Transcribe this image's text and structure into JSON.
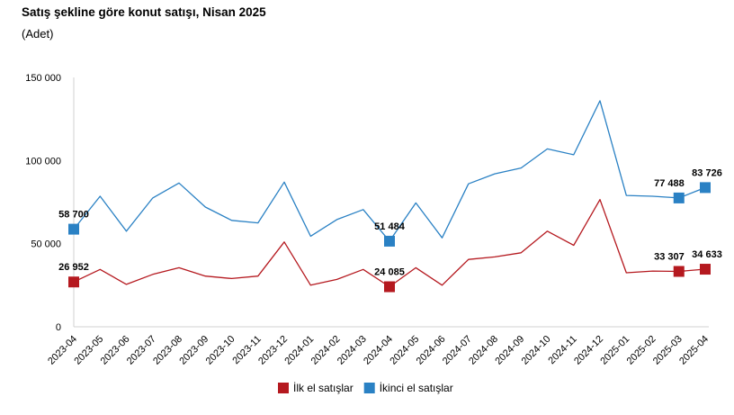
{
  "chart_data": {
    "type": "line",
    "title": "Satış şekline göre konut satışı, Nisan 2025",
    "subtitle": "(Adet)",
    "ylim": [
      0,
      150000
    ],
    "yticks": [
      {
        "value": 0,
        "label": "0"
      },
      {
        "value": 50000,
        "label": "50 000"
      },
      {
        "value": 100000,
        "label": "100 000"
      },
      {
        "value": 150000,
        "label": "150 000"
      }
    ],
    "categories": [
      "2023-04",
      "2023-05",
      "2023-06",
      "2023-07",
      "2023-08",
      "2023-09",
      "2023-10",
      "2023-11",
      "2023-12",
      "2024-01",
      "2024-02",
      "2024-03",
      "2024-04",
      "2024-05",
      "2024-06",
      "2024-07",
      "2024-08",
      "2024-09",
      "2024-10",
      "2024-11",
      "2024-12",
      "2025-01",
      "2025-02",
      "2025-03",
      "2025-04"
    ],
    "legend_position": "bottom",
    "series": [
      {
        "name": "İlk el satışlar",
        "color": "#b5191f",
        "values": [
          26952,
          34500,
          25500,
          31500,
          35500,
          30500,
          29000,
          30500,
          51000,
          25000,
          28500,
          34500,
          24085,
          35500,
          25000,
          40500,
          42000,
          44500,
          57500,
          49000,
          76500,
          32500,
          33500,
          33307,
          34633
        ],
        "markers": [
          {
            "index": 0,
            "label": "26 952"
          },
          {
            "index": 12,
            "label": "24 085"
          },
          {
            "index": 23,
            "label": "33 307"
          },
          {
            "index": 24,
            "label": "34 633"
          }
        ]
      },
      {
        "name": "İkinci el satışlar",
        "color": "#2a81c4",
        "values": [
          58700,
          78500,
          57500,
          77500,
          86500,
          72000,
          64000,
          62500,
          87000,
          54500,
          64500,
          70500,
          51484,
          74500,
          53500,
          86000,
          92000,
          95500,
          107000,
          103500,
          136000,
          79000,
          78500,
          77488,
          83726
        ],
        "markers": [
          {
            "index": 0,
            "label": "58 700"
          },
          {
            "index": 12,
            "label": "51 484"
          },
          {
            "index": 23,
            "label": "77 488"
          },
          {
            "index": 24,
            "label": "83 726"
          }
        ]
      }
    ]
  }
}
